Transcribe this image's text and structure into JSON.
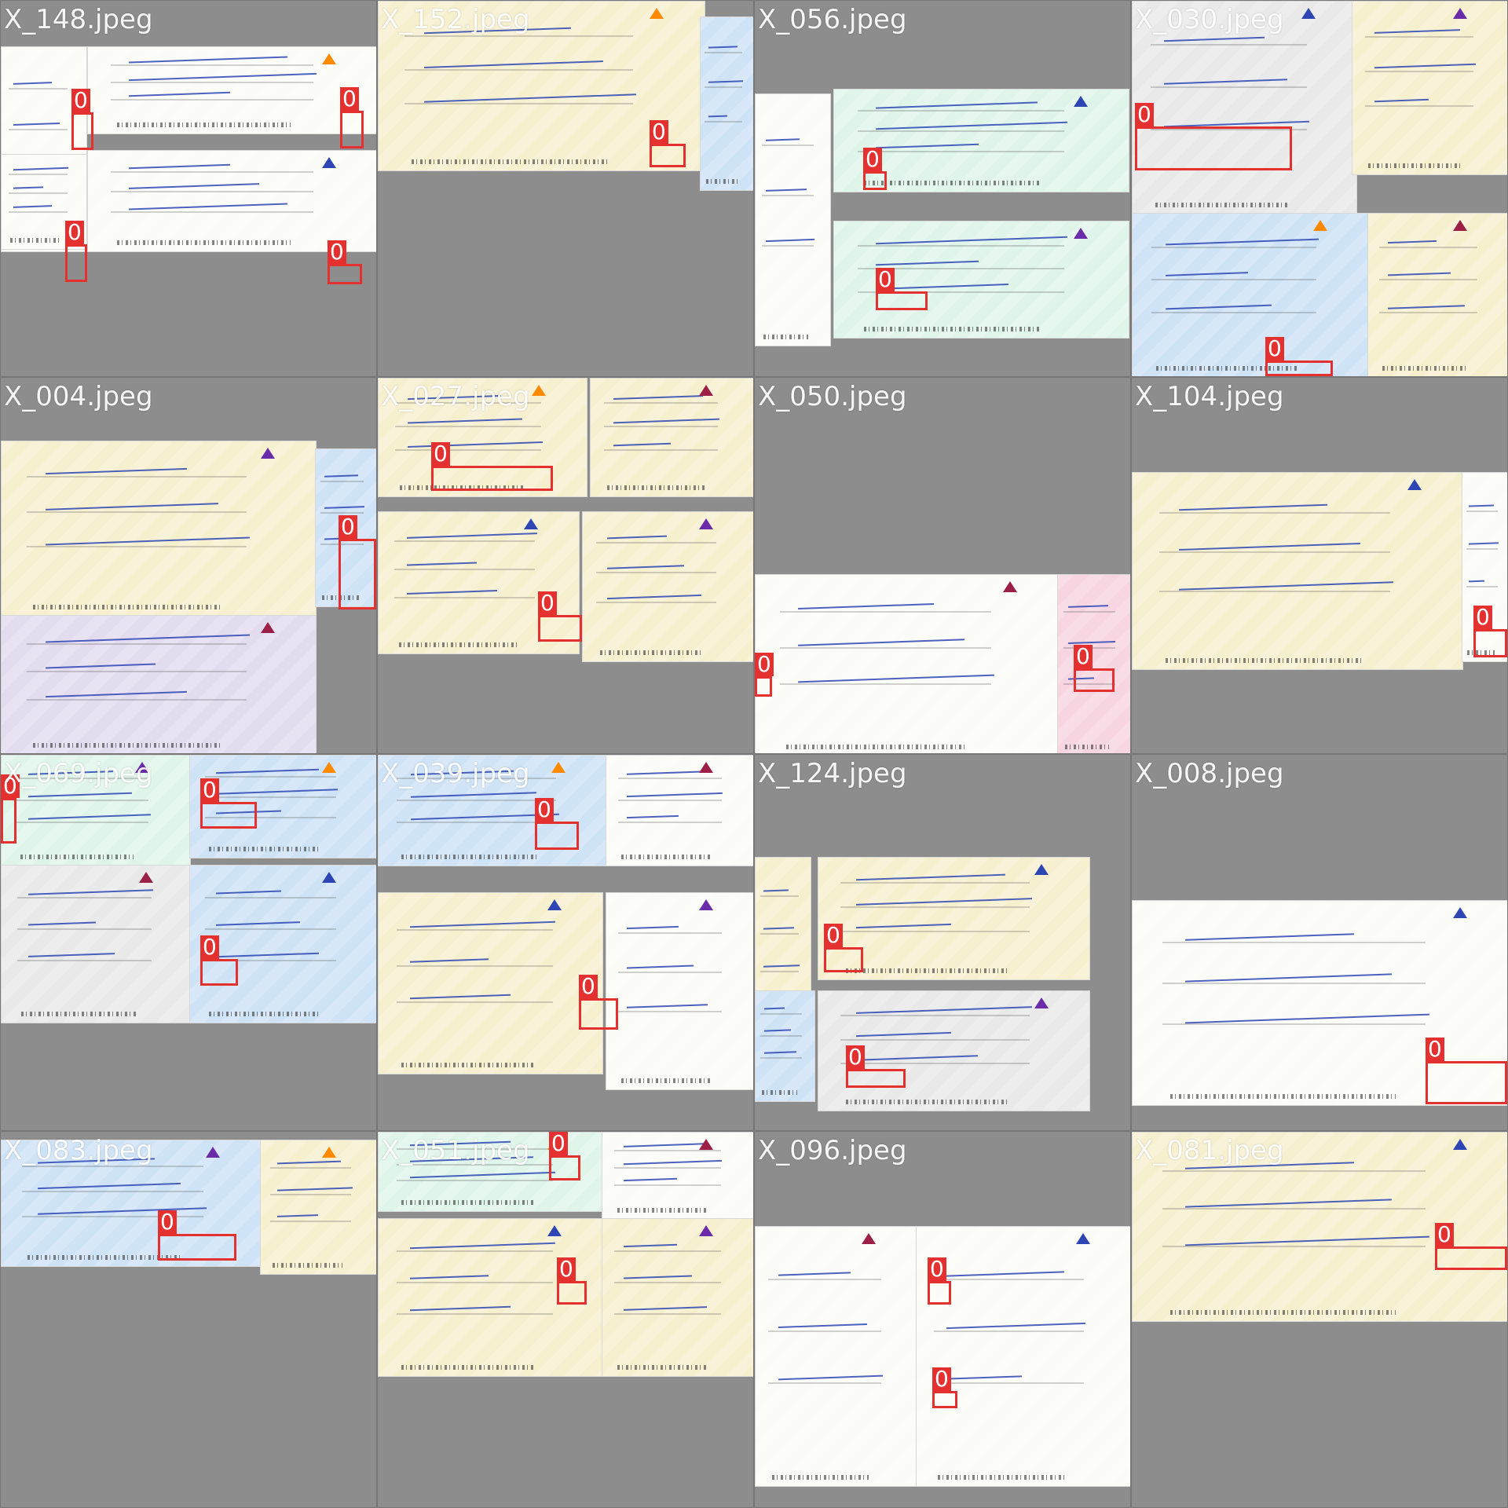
{
  "grid": {
    "tiles": [
      {
        "filename": "X_148.jpeg",
        "label": "0"
      },
      {
        "filename": "X_152.jpeg",
        "label": "0"
      },
      {
        "filename": "X_056.jpeg",
        "label": "0"
      },
      {
        "filename": "X_030.jpeg",
        "label": "0"
      },
      {
        "filename": "X_004.jpeg",
        "label": "0"
      },
      {
        "filename": "X_027.jpeg",
        "label": "0"
      },
      {
        "filename": "X_050.jpeg",
        "label": "0"
      },
      {
        "filename": "X_104.jpeg",
        "label": "0"
      },
      {
        "filename": "X_069.jpeg",
        "label": "0"
      },
      {
        "filename": "X_039.jpeg",
        "label": "0"
      },
      {
        "filename": "X_124.jpeg",
        "label": "0"
      },
      {
        "filename": "X_008.jpeg",
        "label": "0"
      },
      {
        "filename": "X_083.jpeg",
        "label": "0"
      },
      {
        "filename": "X_051.jpeg",
        "label": "0"
      },
      {
        "filename": "X_096.jpeg",
        "label": "0"
      },
      {
        "filename": "X_081.jpeg",
        "label": "0"
      }
    ]
  },
  "colors": {
    "box": "#e53030",
    "label_text": "#ffffff",
    "background": "#777777"
  }
}
